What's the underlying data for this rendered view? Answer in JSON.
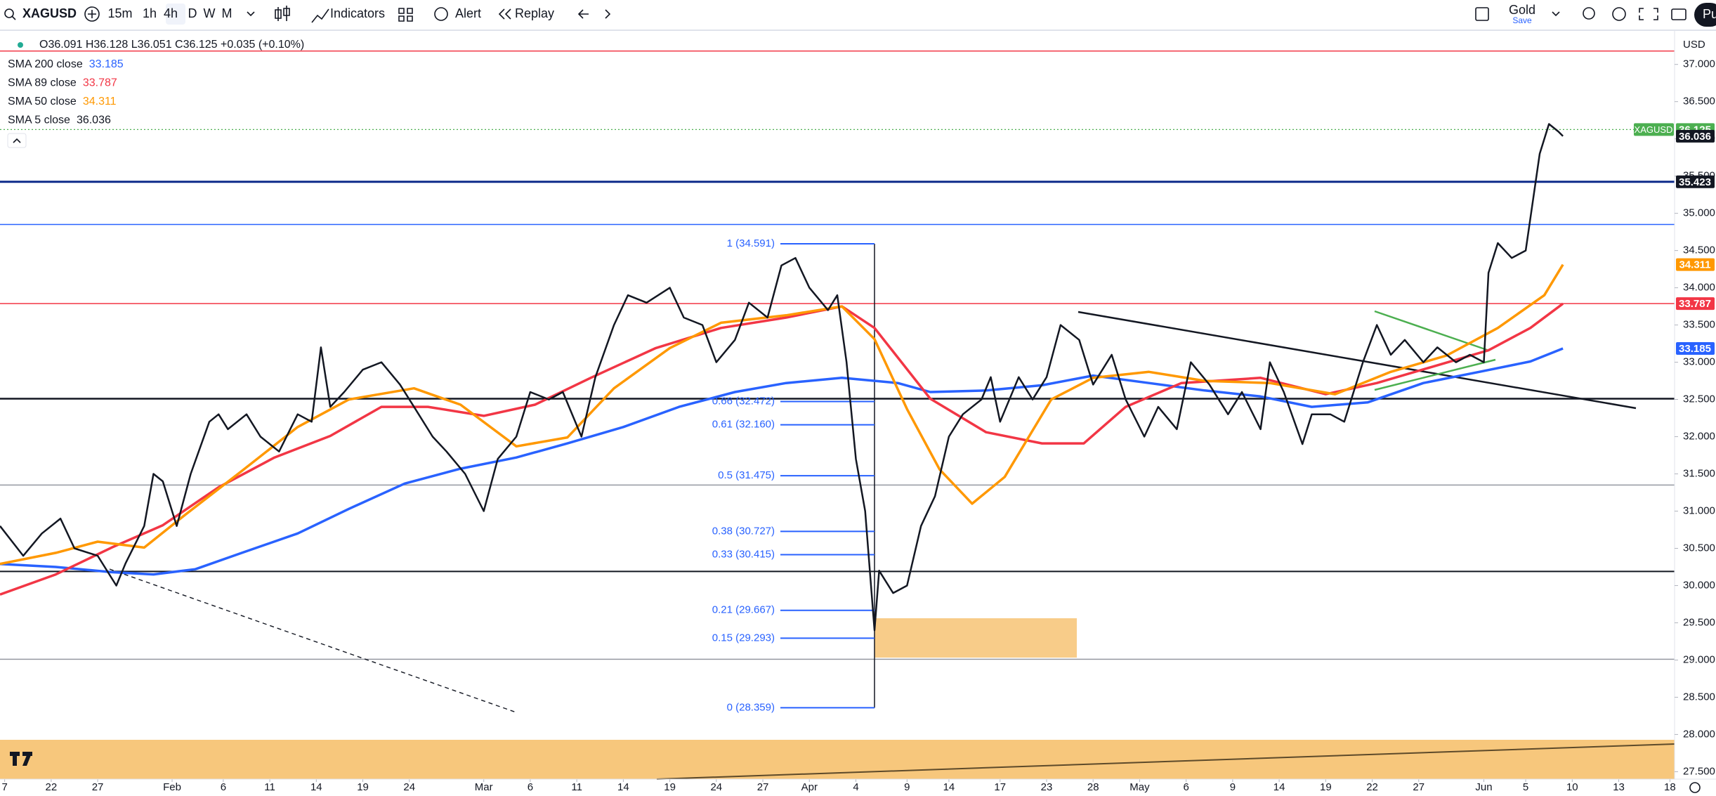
{
  "toolbar": {
    "symbol": "XAGUSD",
    "intervals": [
      "15m",
      "1h",
      "4h",
      "D",
      "W",
      "M"
    ],
    "indicators": "Indicators",
    "alert": "Alert",
    "replay": "Replay",
    "layout_name": "Gold",
    "save": "Save",
    "profile": "Pu"
  },
  "legend": {
    "ohlc": "O36.091 H36.128 L36.051 C36.125 +0.035 (+0.10%)"
  },
  "chart_data": {
    "type": "line",
    "currency": "USD",
    "price": {
      "label": "XAGUSD",
      "value": 36.125,
      "color": "#4caf50"
    },
    "xlim": [
      0,
      360
    ],
    "xticks": [
      {
        "value": 1,
        "label": "7"
      },
      {
        "value": 11,
        "label": "22"
      },
      {
        "value": 21,
        "label": "27"
      },
      {
        "value": 37,
        "label": "Feb"
      },
      {
        "value": 48,
        "label": "6"
      },
      {
        "value": 58,
        "label": "11"
      },
      {
        "value": 68,
        "label": "14"
      },
      {
        "value": 78,
        "label": "19"
      },
      {
        "value": 88,
        "label": "24"
      },
      {
        "value": 104,
        "label": "Mar"
      },
      {
        "value": 114,
        "label": "6"
      },
      {
        "value": 124,
        "label": "11"
      },
      {
        "value": 134,
        "label": "14"
      },
      {
        "value": 144,
        "label": "19"
      },
      {
        "value": 154,
        "label": "24"
      },
      {
        "value": 164,
        "label": "27"
      },
      {
        "value": 174,
        "label": "Apr"
      },
      {
        "value": 184,
        "label": "4"
      },
      {
        "value": 195,
        "label": "9"
      },
      {
        "value": 204,
        "label": "14"
      },
      {
        "value": 215,
        "label": "17"
      },
      {
        "value": 225,
        "label": "23"
      },
      {
        "value": 235,
        "label": "28"
      },
      {
        "value": 245,
        "label": "May"
      },
      {
        "value": 255,
        "label": "6"
      },
      {
        "value": 265,
        "label": "9"
      },
      {
        "value": 275,
        "label": "14"
      },
      {
        "value": 285,
        "label": "19"
      },
      {
        "value": 295,
        "label": "22"
      },
      {
        "value": 305,
        "label": "27"
      },
      {
        "value": 319,
        "label": "Jun"
      },
      {
        "value": 328,
        "label": "5"
      },
      {
        "value": 338,
        "label": "10"
      },
      {
        "value": 348,
        "label": "13"
      },
      {
        "value": 359,
        "label": "18"
      }
    ],
    "ylim": [
      27.4,
      37.45
    ],
    "yticks": [
      {
        "value": 27.5,
        "label": "27.500"
      },
      {
        "value": 28,
        "label": "28.000"
      },
      {
        "value": 28.5,
        "label": "28.500"
      },
      {
        "value": 29,
        "label": "29.000"
      },
      {
        "value": 29.5,
        "label": "29.500"
      },
      {
        "value": 30,
        "label": "30.000"
      },
      {
        "value": 30.5,
        "label": "30.500"
      },
      {
        "value": 31,
        "label": "31.000"
      },
      {
        "value": 31.5,
        "label": "31.500"
      },
      {
        "value": 32,
        "label": "32.000"
      },
      {
        "value": 32.5,
        "label": "32.500"
      },
      {
        "value": 33,
        "label": "33.000"
      },
      {
        "value": 33.5,
        "label": "33.500"
      },
      {
        "value": 34,
        "label": "34.000"
      },
      {
        "value": 34.5,
        "label": "34.500"
      },
      {
        "value": 35,
        "label": "35.000"
      },
      {
        "value": 35.5,
        "label": "35.500"
      },
      {
        "value": 36,
        "label": "36.000"
      },
      {
        "value": 36.5,
        "label": "36.500"
      },
      {
        "value": 37,
        "label": "37.000"
      }
    ],
    "series": [
      {
        "name": "SMA 200 close",
        "color": "#2962ff",
        "last": 33.185,
        "x": [
          0,
          12,
          24,
          33,
          42,
          52,
          64,
          75,
          87,
          99,
          111,
          122,
          134,
          146,
          158,
          169,
          181,
          193,
          200,
          212,
          224,
          235,
          247,
          259,
          271,
          282,
          294,
          306,
          318,
          329,
          336
        ],
        "values": [
          30.29,
          30.25,
          30.18,
          30.15,
          30.22,
          30.44,
          30.7,
          31.03,
          31.37,
          31.57,
          31.72,
          31.91,
          32.13,
          32.4,
          32.6,
          32.72,
          32.79,
          32.72,
          32.6,
          32.62,
          32.69,
          32.82,
          32.72,
          32.62,
          32.54,
          32.4,
          32.46,
          32.72,
          32.87,
          33.01,
          33.185
        ]
      },
      {
        "name": "SMA 89 close",
        "color": "#f23645",
        "last": 33.787,
        "x": [
          0,
          12,
          24,
          35,
          47,
          59,
          71,
          82,
          92,
          104,
          115,
          127,
          141,
          155,
          169,
          181,
          188,
          200,
          212,
          224,
          233,
          242,
          254,
          271,
          285,
          296,
          308,
          320,
          329,
          336
        ],
        "values": [
          29.88,
          30.15,
          30.51,
          30.81,
          31.32,
          31.72,
          32.01,
          32.4,
          32.4,
          32.28,
          32.43,
          32.79,
          33.19,
          33.46,
          33.6,
          33.75,
          33.46,
          32.51,
          32.06,
          31.91,
          31.91,
          32.4,
          32.72,
          32.79,
          32.57,
          32.72,
          32.94,
          33.16,
          33.46,
          33.787
        ]
      },
      {
        "name": "SMA 50 close",
        "color": "#ff9800",
        "last": 34.311,
        "x": [
          0,
          12,
          21,
          31,
          40,
          52,
          64,
          75,
          89,
          99,
          111,
          122,
          132,
          144,
          155,
          169,
          181,
          188,
          195,
          202,
          209,
          216,
          226,
          235,
          247,
          259,
          273,
          287,
          299,
          311,
          322,
          332,
          336
        ],
        "values": [
          30.29,
          30.44,
          30.59,
          30.51,
          30.96,
          31.54,
          32.13,
          32.5,
          32.65,
          32.43,
          31.87,
          31.99,
          32.65,
          33.19,
          33.53,
          33.63,
          33.75,
          33.31,
          32.37,
          31.56,
          31.1,
          31.46,
          32.5,
          32.79,
          32.87,
          32.75,
          32.72,
          32.57,
          32.87,
          33.09,
          33.46,
          33.9,
          34.311
        ]
      },
      {
        "name": "SMA 5 close",
        "color": "#131722",
        "last": 36.036,
        "x": [
          0,
          5,
          9,
          13,
          16,
          21,
          25,
          27,
          31,
          33,
          35,
          38,
          41,
          45,
          47,
          49,
          53,
          56,
          60,
          64,
          67,
          69,
          71,
          74,
          78,
          82,
          86,
          89,
          93,
          96,
          100,
          104,
          107,
          111,
          114,
          118,
          121,
          125,
          128,
          132,
          135,
          139,
          144,
          147,
          151,
          154,
          158,
          161,
          165,
          168,
          171,
          174,
          178,
          180,
          182,
          184,
          186,
          188,
          189,
          192,
          195,
          198,
          201,
          204,
          207,
          211,
          213,
          215,
          219,
          222,
          225,
          228,
          232,
          235,
          239,
          242,
          246,
          249,
          253,
          256,
          260,
          264,
          267,
          271,
          273,
          276,
          280,
          282,
          286,
          289,
          293,
          296,
          299,
          302,
          306,
          309,
          313,
          316,
          319,
          320,
          322,
          325,
          328,
          331,
          333,
          335,
          336
        ],
        "values": [
          30.8,
          30.4,
          30.7,
          30.9,
          30.5,
          30.4,
          30.0,
          30.3,
          30.8,
          31.5,
          31.4,
          30.8,
          31.5,
          32.2,
          32.3,
          32.1,
          32.3,
          32.0,
          31.8,
          32.3,
          32.2,
          33.2,
          32.4,
          32.6,
          32.9,
          33.0,
          32.7,
          32.4,
          32.0,
          31.8,
          31.5,
          31.0,
          31.7,
          32.0,
          32.6,
          32.5,
          32.6,
          32.0,
          32.8,
          33.5,
          33.9,
          33.8,
          34.0,
          33.6,
          33.5,
          33.0,
          33.3,
          33.8,
          33.6,
          34.3,
          34.4,
          34.0,
          33.7,
          33.9,
          33.0,
          31.7,
          31.0,
          29.4,
          30.2,
          29.9,
          30.0,
          30.8,
          31.2,
          32.0,
          32.3,
          32.5,
          32.8,
          32.2,
          32.8,
          32.5,
          32.8,
          33.5,
          33.3,
          32.7,
          33.1,
          32.5,
          32.0,
          32.4,
          32.1,
          33.0,
          32.7,
          32.3,
          32.6,
          32.1,
          33.0,
          32.6,
          31.9,
          32.3,
          32.3,
          32.2,
          33.0,
          33.5,
          33.1,
          33.3,
          33.0,
          33.2,
          33.0,
          33.1,
          33.0,
          34.2,
          34.6,
          34.4,
          34.5,
          35.8,
          36.2,
          36.1,
          36.036
        ]
      }
    ],
    "hlines": [
      {
        "value": 37.18,
        "color": "#f23645",
        "width": 1.5
      },
      {
        "value": 35.423,
        "color": "#0d2a8a",
        "width": 3,
        "badge": true
      },
      {
        "value": 34.85,
        "color": "#2962ff",
        "width": 1.5
      },
      {
        "value": 33.787,
        "color": "#f23645",
        "width": 1.5
      },
      {
        "value": 32.51,
        "color": "#131722",
        "width": 2.5
      },
      {
        "value": 31.35,
        "color": "#9598a1",
        "width": 1.5
      },
      {
        "value": 30.19,
        "color": "#131722",
        "width": 2
      },
      {
        "value": 29.01,
        "color": "#9598a1",
        "width": 1.5
      }
    ],
    "fib": {
      "color": "#2962ff",
      "levels": [
        {
          "value": 34.591,
          "label": "1 (34.591)"
        },
        {
          "value": 32.472,
          "label": "0.66 (32.472)"
        },
        {
          "value": 32.16,
          "label": "0.61 (32.160)"
        },
        {
          "value": 31.475,
          "label": "0.5 (31.475)"
        },
        {
          "value": 30.727,
          "label": "0.38 (30.727)"
        },
        {
          "value": 30.415,
          "label": "0.33 (30.415)"
        },
        {
          "value": 29.667,
          "label": "0.21 (29.667)"
        },
        {
          "value": 29.293,
          "label": "0.15 (29.293)"
        },
        {
          "value": 28.359,
          "label": "0 (28.359)"
        }
      ]
    }
  }
}
